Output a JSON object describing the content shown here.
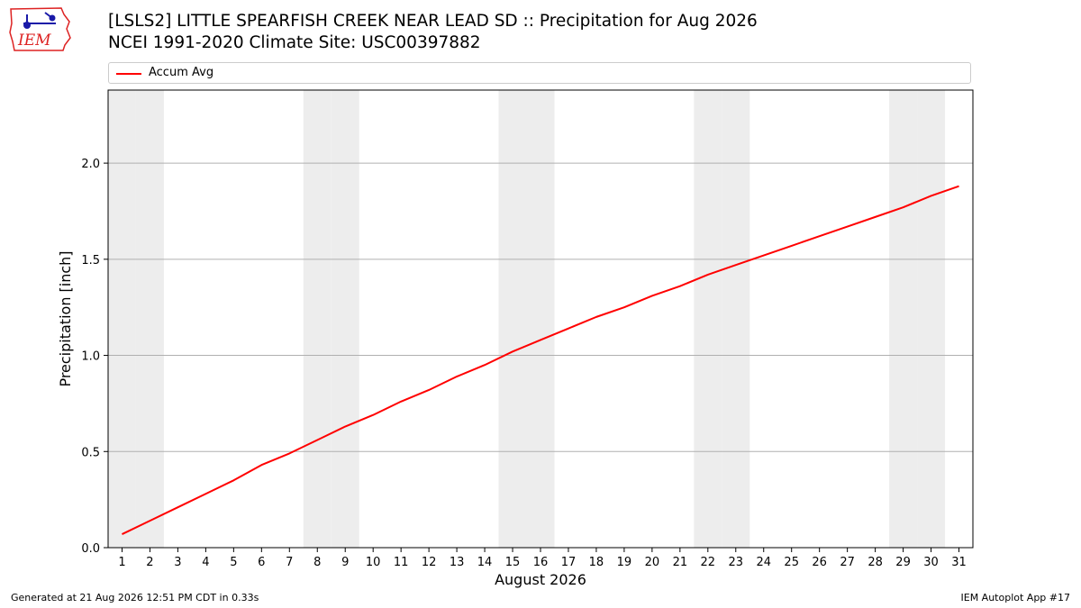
{
  "header": {
    "logo_text": "IEM",
    "title_line1": "[LSLS2] LITTLE SPEARFISH CREEK NEAR LEAD  SD :: Precipitation for Aug 2026",
    "title_line2": "NCEI 1991-2020 Climate Site: USC00397882"
  },
  "footer": {
    "generated": "Generated at 21 Aug 2026 12:51 PM CDT in 0.33s",
    "app": "IEM Autoplot App #17"
  },
  "colors": {
    "line": "#ff0000",
    "weekend_band": "#ededed",
    "grid": "#b0b0b0"
  },
  "chart_data": {
    "type": "line",
    "xlabel": "August 2026",
    "ylabel": "Precipitation [inch]",
    "xlim": [
      0.5,
      31.5
    ],
    "ylim": [
      0,
      2.38
    ],
    "yticks": [
      0.0,
      0.5,
      1.0,
      1.5,
      2.0
    ],
    "ytick_labels": [
      "0.0",
      "0.5",
      "1.0",
      "1.5",
      "2.0"
    ],
    "grid": "horizontal",
    "legend_position": "top",
    "x": [
      1,
      2,
      3,
      4,
      5,
      6,
      7,
      8,
      9,
      10,
      11,
      12,
      13,
      14,
      15,
      16,
      17,
      18,
      19,
      20,
      21,
      22,
      23,
      24,
      25,
      26,
      27,
      28,
      29,
      30,
      31
    ],
    "weekend_days": [
      1,
      2,
      8,
      9,
      15,
      16,
      22,
      23,
      29,
      30
    ],
    "series": [
      {
        "name": "Accum Avg",
        "values": [
          0.07,
          0.14,
          0.21,
          0.28,
          0.35,
          0.43,
          0.49,
          0.56,
          0.63,
          0.69,
          0.76,
          0.82,
          0.89,
          0.95,
          1.02,
          1.08,
          1.14,
          1.2,
          1.25,
          1.31,
          1.36,
          1.42,
          1.47,
          1.52,
          1.57,
          1.62,
          1.67,
          1.72,
          1.77,
          1.83,
          1.88
        ]
      }
    ]
  }
}
